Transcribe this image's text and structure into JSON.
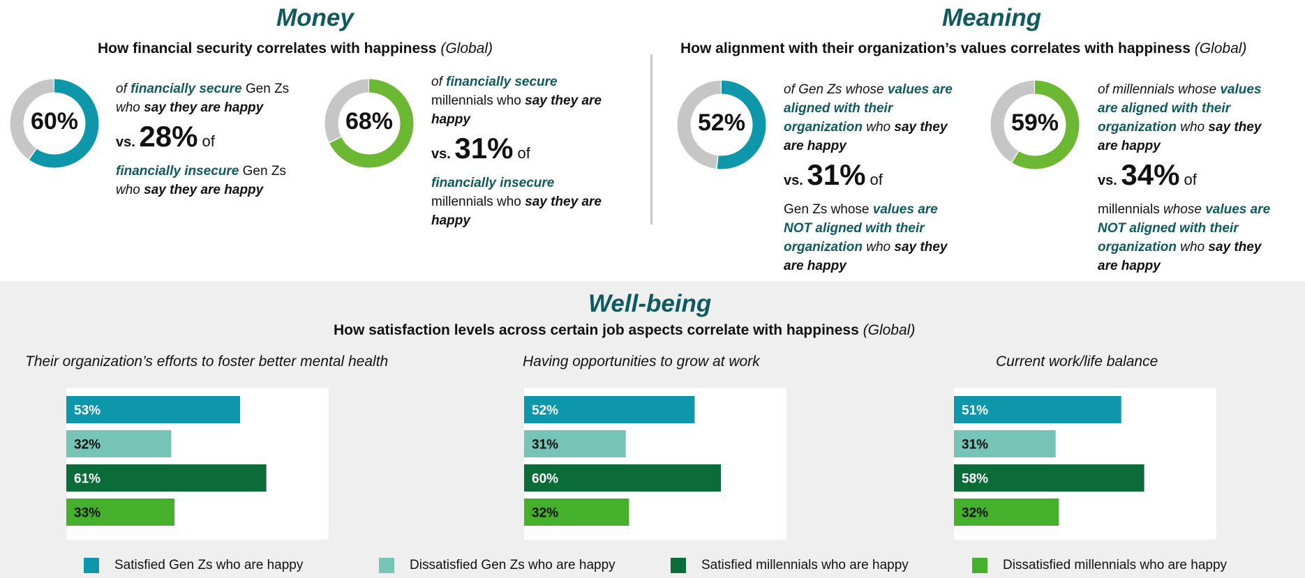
{
  "money": {
    "title": "Money",
    "subtitle": "How financial security correlates with happiness",
    "subtitle_suffix": "(Global)",
    "genz": {
      "pct": "60%",
      "t1": "of ",
      "t2": "financially secure",
      "t3": " Gen Zs",
      "t4": "who ",
      "t5": "say they are happy",
      "vs": "vs. ",
      "vs_pct": "28%",
      "of": " of",
      "t6": "financially insecure",
      "t7": " Gen Zs",
      "t8": "who ",
      "t9": "say they are happy"
    },
    "mill": {
      "pct": "68%",
      "t1": "of ",
      "t2": "financially secure",
      "t3": "millennials who ",
      "t4": "say they are",
      "t5": "happy",
      "vs": "vs. ",
      "vs_pct": "31%",
      "of": " of",
      "t6": "financially insecure",
      "t7": "millennials who ",
      "t8": "say they are",
      "t9": "happy"
    }
  },
  "meaning": {
    "title": "Meaning",
    "subtitle": "How alignment with their organization’s values correlates with happiness",
    "subtitle_suffix": "(Global)",
    "genz": {
      "pct": "52%",
      "t1": "of Gen Zs whose ",
      "t2": "values are",
      "t3": "aligned with their",
      "t4": "organization",
      "t5": " who ",
      "t6": "say they",
      "t7": "are happy",
      "vs": "vs. ",
      "vs_pct": "31%",
      "of": " of",
      "t8": "Gen Zs whose ",
      "t9": "values are",
      "t10": "NOT aligned with their",
      "t11": "organization",
      "t12": " who ",
      "t13": "say they",
      "t14": "are happy"
    },
    "mill": {
      "pct": "59%",
      "t1": "of millennials whose ",
      "t2": "values",
      "t3": "are aligned with their",
      "t4": "organization",
      "t5": " who ",
      "t6": "say they",
      "t7": "are happy",
      "vs": "vs. ",
      "vs_pct": "34%",
      "of": " of",
      "t8": "millennials ",
      "t8b": "whose ",
      "t9": "values are",
      "t10": "NOT aligned with their",
      "t11": "organization",
      "t12": " who ",
      "t13": "say they",
      "t14": "are happy"
    }
  },
  "wellbeing": {
    "title": "Well-being",
    "subtitle": "How satisfaction levels across certain job aspects correlate with happiness",
    "subtitle_suffix": "(Global)"
  },
  "colors": {
    "teal": "#0e97aa",
    "mint": "#76c4b5",
    "dark_green": "#0b6b39",
    "light_green": "#44b02c",
    "donut_gray": "#c6c6c6",
    "accent_text": "#0e5a5f"
  },
  "chart_data": [
    {
      "type": "pie",
      "title": "",
      "values": [
        60,
        40
      ],
      "categories": [
        "financially secure Gen Zs who say they are happy",
        ""
      ],
      "colors": [
        "#0e97aa",
        "#c6c6c6"
      ]
    },
    {
      "type": "pie",
      "title": "",
      "values": [
        68,
        32
      ],
      "categories": [
        "financially secure millennials who say they are happy",
        ""
      ],
      "colors": [
        "#6db832",
        "#c6c6c6"
      ]
    },
    {
      "type": "pie",
      "title": "",
      "values": [
        52,
        48
      ],
      "categories": [
        "Gen Zs whose values are aligned with their organization who say they are happy",
        ""
      ],
      "colors": [
        "#0e97aa",
        "#c6c6c6"
      ]
    },
    {
      "type": "pie",
      "title": "",
      "values": [
        59,
        41
      ],
      "categories": [
        "millennials whose values are aligned with their organization who say they are happy",
        ""
      ],
      "colors": [
        "#6db832",
        "#c6c6c6"
      ]
    },
    {
      "type": "bar",
      "title": "Their organization’s efforts to foster better mental health",
      "categories": [
        "Satisfied Gen Zs who are happy",
        "Dissatisfied Gen Zs who are happy",
        "Satisfied millennials who are happy",
        "Dissatisfied millennials who are happy"
      ],
      "values": [
        53,
        32,
        61,
        33
      ],
      "labels": [
        "53%",
        "32%",
        "61%",
        "33%"
      ],
      "ylim": [
        0,
        80
      ]
    },
    {
      "type": "bar",
      "title": "Having opportunities to grow at work",
      "categories": [
        "Satisfied Gen Zs who are happy",
        "Dissatisfied Gen Zs who are happy",
        "Satisfied millennials who are happy",
        "Dissatisfied millennials who are happy"
      ],
      "values": [
        52,
        31,
        60,
        32
      ],
      "labels": [
        "52%",
        "31%",
        "60%",
        "32%"
      ],
      "ylim": [
        0,
        80
      ]
    },
    {
      "type": "bar",
      "title": "Current work/life balance",
      "categories": [
        "Satisfied Gen Zs who are happy",
        "Dissatisfied Gen Zs who are happy",
        "Satisfied millennials who are happy",
        "Dissatisfied millennials who are happy"
      ],
      "values": [
        51,
        31,
        58,
        32
      ],
      "labels": [
        "51%",
        "31%",
        "58%",
        "32%"
      ],
      "ylim": [
        0,
        80
      ]
    }
  ],
  "legend": [
    {
      "label": "Satisfied Gen Zs who are happy",
      "color": "#0e97aa"
    },
    {
      "label": "Dissatisfied Gen Zs who are happy",
      "color": "#76c4b5"
    },
    {
      "label": "Satisfied millennials who are happy",
      "color": "#0b6b39"
    },
    {
      "label": "Dissatisfied millennials who are happy",
      "color": "#44b02c"
    }
  ]
}
